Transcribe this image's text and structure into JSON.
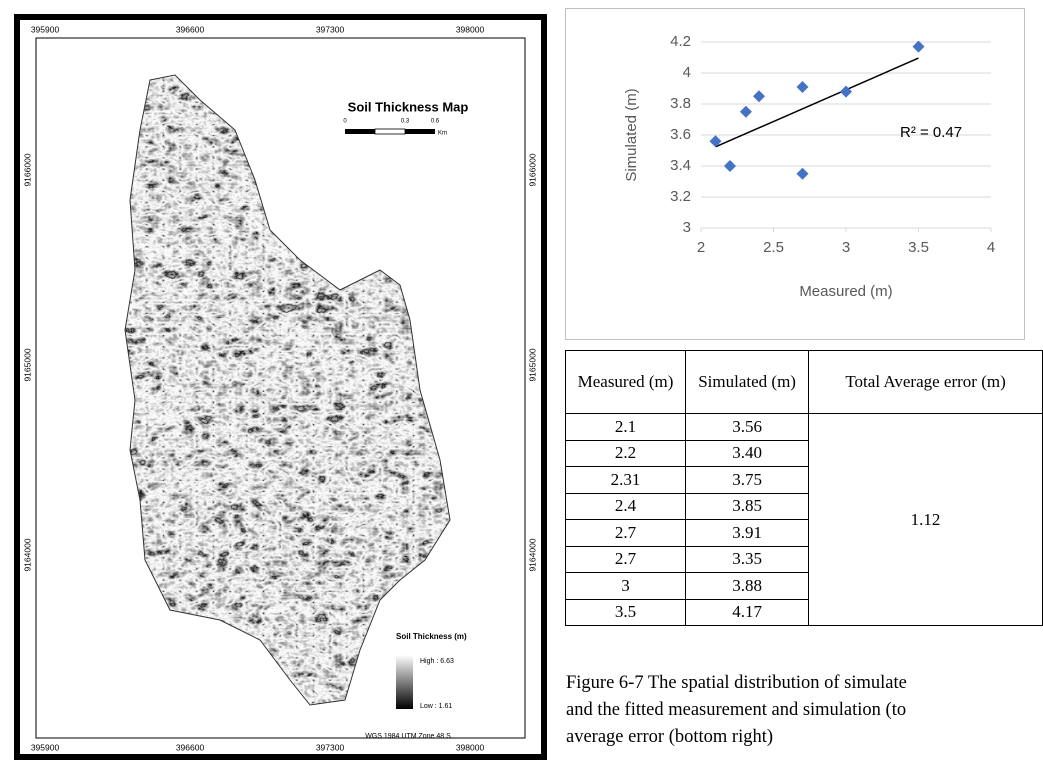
{
  "map": {
    "x_labels": [
      "395900",
      "396600",
      "397300",
      "398000"
    ],
    "y_labels": [
      "9166000",
      "9165000",
      "9164000"
    ],
    "title": "Soil Thickness Map",
    "scale_labels": [
      "0",
      "0.3",
      "0.6",
      "Km"
    ],
    "legend_title": "Soil Thickness (m)",
    "legend_high": "High : 6.63",
    "legend_low": "Low : 1.61",
    "projection": "WGS 1984 UTM Zone 48 S"
  },
  "chart_data": {
    "type": "scatter",
    "x_label": "Measured (m)",
    "y_label": "Simulated (m)",
    "x": [
      2.1,
      2.2,
      2.31,
      2.4,
      2.7,
      2.7,
      3,
      3.5
    ],
    "values": [
      3.56,
      3.4,
      3.75,
      3.85,
      3.91,
      3.35,
      3.88,
      4.17
    ],
    "color": "#4472c4",
    "xlim": [
      2,
      4
    ],
    "xticks": [
      2,
      2.5,
      3,
      3.5,
      4
    ],
    "ylim": [
      3,
      4.2
    ],
    "yticks": [
      3,
      3.2,
      3.4,
      3.6,
      3.8,
      4,
      4.2
    ],
    "grid": true,
    "trendline": true,
    "annotation": "R² = 0.47"
  },
  "table": {
    "header": [
      "Measured (m)",
      "Simulated (m)",
      "Total Average error (m)"
    ],
    "rows": [
      [
        "2.1",
        "3.56"
      ],
      [
        "2.2",
        "3.40"
      ],
      [
        "2.31",
        "3.75"
      ],
      [
        "2.4",
        "3.85"
      ],
      [
        "2.7",
        "3.91"
      ],
      [
        "2.7",
        "3.35"
      ],
      [
        "3",
        "3.88"
      ],
      [
        "3.5",
        "4.17"
      ]
    ],
    "total_error": "1.12"
  },
  "caption": [
    "Figure 6-7 The spatial distribution of simulate",
    "and the fitted measurement and simulation (to",
    "average error (bottom right)"
  ]
}
